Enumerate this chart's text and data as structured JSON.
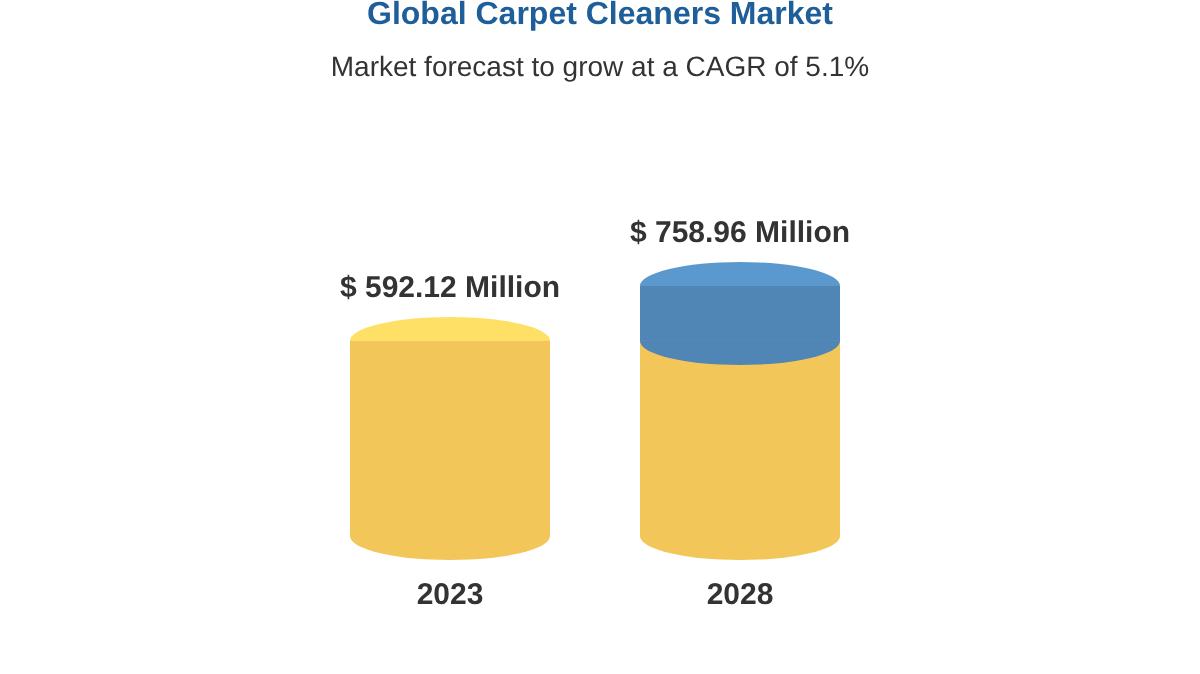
{
  "chart_data": {
    "type": "bar",
    "title": "Global Carpet Cleaners Market",
    "subtitle": "Market forecast to grow at a CAGR of 5.1%",
    "categories": [
      "2023",
      "2028"
    ],
    "stacked": true,
    "series": [
      {
        "color": "#f3c65a",
        "values": [
          592.12,
          592.12
        ],
        "value_labels": [
          "$ 592.12 Million",
          null
        ]
      },
      {
        "color": "#4f86b6",
        "values": [
          null,
          166.84
        ]
      }
    ],
    "totals": [
      null,
      "$ 758.96 Million"
    ]
  }
}
